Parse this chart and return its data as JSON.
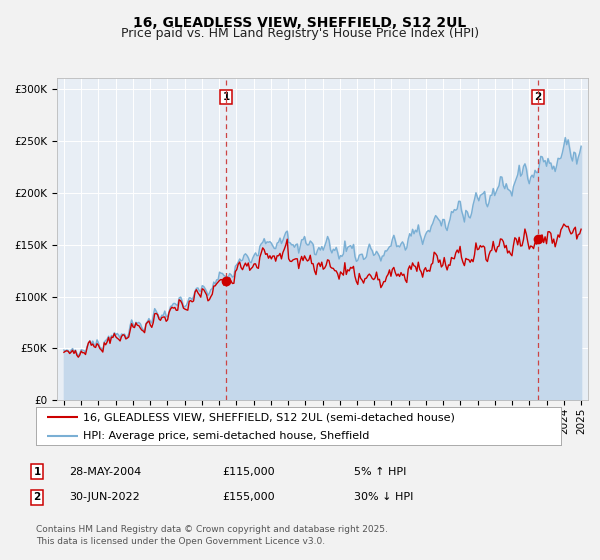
{
  "title": "16, GLEADLESS VIEW, SHEFFIELD, S12 2UL",
  "subtitle": "Price paid vs. HM Land Registry's House Price Index (HPI)",
  "background_color": "#f2f2f2",
  "plot_bg_color": "#e8eef5",
  "grid_color": "#ffffff",
  "hpi_color": "#7aafd4",
  "hpi_fill_color": "#c5d8eb",
  "price_color": "#cc0000",
  "marker_color": "#cc0000",
  "vline_color": "#cc4444",
  "ylim": [
    0,
    310000
  ],
  "yticks": [
    0,
    50000,
    100000,
    150000,
    200000,
    250000,
    300000
  ],
  "xlim_start": 1994.6,
  "xlim_end": 2025.4,
  "purchase1_date": 2004.41,
  "purchase1_price": 115000,
  "purchase2_date": 2022.5,
  "purchase2_price": 155000,
  "legend_entries": [
    "16, GLEADLESS VIEW, SHEFFIELD, S12 2UL (semi-detached house)",
    "HPI: Average price, semi-detached house, Sheffield"
  ],
  "annotation_rows": [
    [
      "1",
      "28-MAY-2004",
      "£115,000",
      "5% ↑ HPI"
    ],
    [
      "2",
      "30-JUN-2022",
      "£155,000",
      "30% ↓ HPI"
    ]
  ],
  "footnote": "Contains HM Land Registry data © Crown copyright and database right 2025.\nThis data is licensed under the Open Government Licence v3.0.",
  "title_fontsize": 10,
  "subtitle_fontsize": 9,
  "tick_fontsize": 7.5,
  "legend_fontsize": 8,
  "annotation_fontsize": 8,
  "footnote_fontsize": 6.5
}
